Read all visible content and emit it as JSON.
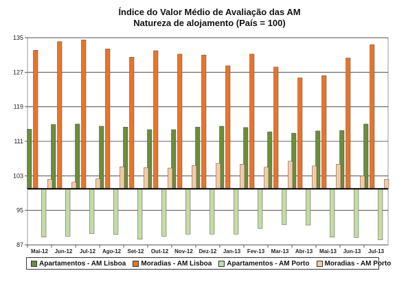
{
  "chart_data": {
    "type": "bar",
    "title": "Índice do Valor Médio de Avaliação das AM",
    "subtitle": "Natureza de alojamento (País = 100)",
    "categories": [
      "Mai-12",
      "Jun-12",
      "Jul-12",
      "Ago-12",
      "Set-12",
      "Out-12",
      "Nov-12",
      "Dez-12",
      "Jan-13",
      "Fev-13",
      "Mar-13",
      "Abr-13",
      "Mai-13",
      "Jun-13",
      "Jul-13"
    ],
    "baseline": 100,
    "ylim": [
      87,
      135
    ],
    "yticks": [
      87,
      95,
      103,
      111,
      119,
      127,
      135
    ],
    "grid": true,
    "legend_position": "bottom",
    "series": [
      {
        "name": "Apartamentos - AM Lisboa",
        "color": "#6b8e3a",
        "values": [
          113.8,
          114.9,
          115.0,
          114.5,
          114.3,
          113.7,
          113.7,
          114.3,
          114.5,
          114.2,
          113.2,
          112.9,
          113.4,
          113.5,
          115.0
        ]
      },
      {
        "name": "Moradias - AM Lisboa",
        "color": "#e8742a",
        "values": [
          132.1,
          134.1,
          134.5,
          132.4,
          130.5,
          132.0,
          131.2,
          131.0,
          128.5,
          131.2,
          128.2,
          125.7,
          126.2,
          130.3,
          133.4
        ]
      },
      {
        "name": "Apartamentos - AM Porto",
        "color": "#c5dca5",
        "values": [
          88.8,
          89.0,
          89.6,
          89.4,
          88.3,
          89.0,
          89.5,
          89.5,
          89.5,
          90.8,
          91.7,
          91.6,
          88.8,
          88.7,
          88.2
        ]
      },
      {
        "name": "Moradias - AM Porto",
        "color": "#f8c9a2",
        "values": [
          102.2,
          101.5,
          102.3,
          105.1,
          104.9,
          104.8,
          105.4,
          105.9,
          105.7,
          105.0,
          106.4,
          105.3,
          105.7,
          103.0,
          102.2
        ]
      }
    ]
  }
}
